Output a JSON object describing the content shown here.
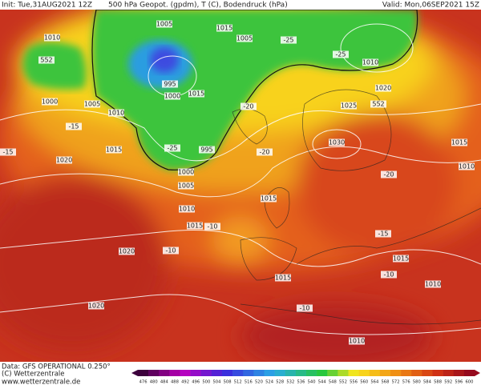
{
  "header": {
    "init": "Init: Tue,31AUG2021 12Z",
    "title": "500 hPa Geopot. (gpdm), T (C), Bodendruck (hPa)",
    "valid": "Valid: Mon,06SEP2021 15Z"
  },
  "footer": {
    "data": "Data: GFS OPERATIONAL 0.250°",
    "copyright": "(C) Wetterzentrale",
    "url": "www.wetterzentrale.de"
  },
  "colorbar": {
    "labels": [
      476,
      480,
      484,
      488,
      492,
      496,
      500,
      504,
      508,
      512,
      516,
      520,
      524,
      528,
      532,
      536,
      540,
      544,
      548,
      552,
      556,
      560,
      564,
      568,
      572,
      576,
      580,
      584,
      588,
      592,
      596,
      600
    ]
  },
  "map_labels": [
    "1010",
    "552",
    "1000",
    "1005",
    "1005",
    "1010",
    "1015",
    "1005",
    "1010",
    "1020",
    "1025",
    "1015",
    "1020",
    "1030",
    "995",
    "1000",
    "1005",
    "1010",
    "1015",
    "1020",
    "1020",
    "1015",
    "1015",
    "1015",
    "1010",
    "1015",
    "1010",
    "1010",
    "995",
    "1000",
    "1015",
    "552",
    "-25",
    "-20",
    "-15",
    "-10",
    "-10",
    "-20",
    "-15",
    "-10",
    "-25",
    "-20",
    "-15",
    "-25",
    "-10"
  ]
}
